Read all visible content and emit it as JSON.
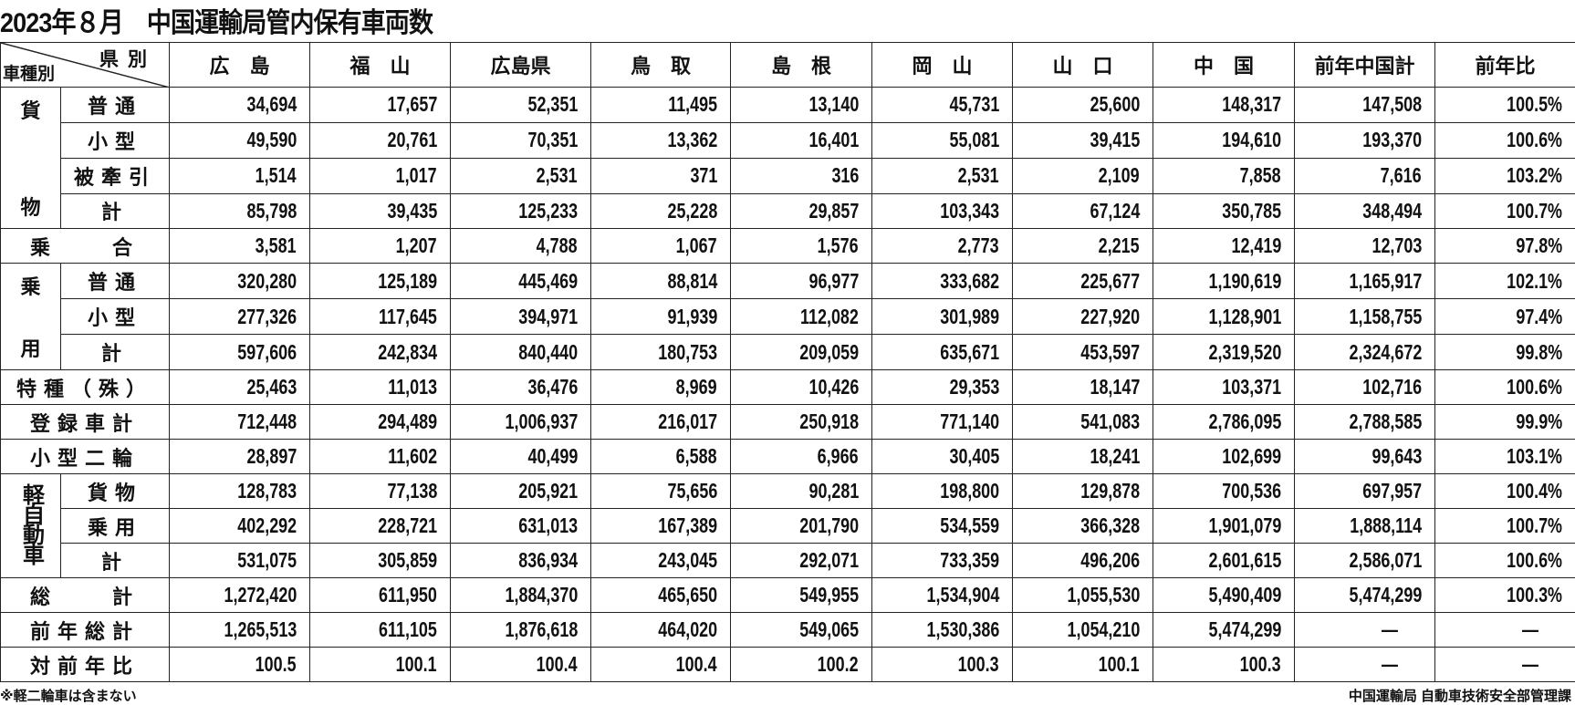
{
  "title": "2023年８月　中国運輸局管内保有車両数",
  "corner": {
    "top": "県別",
    "bottom": "車種別"
  },
  "columns": [
    "広　島",
    "福　山",
    "広島県",
    "鳥　取",
    "島　根",
    "岡　山",
    "山　口",
    "中　国",
    "前年中国計",
    "前年比"
  ],
  "groups": {
    "kamotsu": {
      "top": "貨",
      "bottom": "物"
    },
    "joyo": {
      "top": "乗",
      "bottom": "用"
    },
    "kei": {
      "vertical": "軽自動車"
    }
  },
  "rows": [
    {
      "group": "kamotsu",
      "label": "普通",
      "values": [
        "34,694",
        "17,657",
        "52,351",
        "11,495",
        "13,140",
        "45,731",
        "25,600",
        "148,317",
        "147,508",
        "100.5%"
      ]
    },
    {
      "group": "kamotsu",
      "label": "小型",
      "values": [
        "49,590",
        "20,761",
        "70,351",
        "13,362",
        "16,401",
        "55,081",
        "39,415",
        "194,610",
        "193,370",
        "100.6%"
      ]
    },
    {
      "group": "kamotsu",
      "label": "被牽引",
      "values": [
        "1,514",
        "1,017",
        "2,531",
        "371",
        "316",
        "2,531",
        "2,109",
        "7,858",
        "7,616",
        "103.2%"
      ]
    },
    {
      "group": "kamotsu",
      "label": "計",
      "values": [
        "85,798",
        "39,435",
        "125,233",
        "25,228",
        "29,857",
        "103,343",
        "67,124",
        "350,785",
        "348,494",
        "100.7%"
      ]
    },
    {
      "label": "乗　　合",
      "values": [
        "3,581",
        "1,207",
        "4,788",
        "1,067",
        "1,576",
        "2,773",
        "2,215",
        "12,419",
        "12,703",
        "97.8%"
      ]
    },
    {
      "group": "joyo",
      "label": "普通",
      "values": [
        "320,280",
        "125,189",
        "445,469",
        "88,814",
        "96,977",
        "333,682",
        "225,677",
        "1,190,619",
        "1,165,917",
        "102.1%"
      ]
    },
    {
      "group": "joyo",
      "label": "小型",
      "values": [
        "277,326",
        "117,645",
        "394,971",
        "91,939",
        "112,082",
        "301,989",
        "227,920",
        "1,128,901",
        "1,158,755",
        "97.4%"
      ]
    },
    {
      "group": "joyo",
      "label": "計",
      "values": [
        "597,606",
        "242,834",
        "840,440",
        "180,753",
        "209,059",
        "635,671",
        "453,597",
        "2,319,520",
        "2,324,672",
        "99.8%"
      ]
    },
    {
      "label": "特種（殊）",
      "values": [
        "25,463",
        "11,013",
        "36,476",
        "8,969",
        "10,426",
        "29,353",
        "18,147",
        "103,371",
        "102,716",
        "100.6%"
      ]
    },
    {
      "label": "登録車計",
      "values": [
        "712,448",
        "294,489",
        "1,006,937",
        "216,017",
        "250,918",
        "771,140",
        "541,083",
        "2,786,095",
        "2,788,585",
        "99.9%"
      ]
    },
    {
      "label": "小型二輪",
      "values": [
        "28,897",
        "11,602",
        "40,499",
        "6,588",
        "6,966",
        "30,405",
        "18,241",
        "102,699",
        "99,643",
        "103.1%"
      ]
    },
    {
      "group": "kei",
      "label": "貨物",
      "values": [
        "128,783",
        "77,138",
        "205,921",
        "75,656",
        "90,281",
        "198,800",
        "129,878",
        "700,536",
        "697,957",
        "100.4%"
      ]
    },
    {
      "group": "kei",
      "label": "乗用",
      "values": [
        "402,292",
        "228,721",
        "631,013",
        "167,389",
        "201,790",
        "534,559",
        "366,328",
        "1,901,079",
        "1,888,114",
        "100.7%"
      ]
    },
    {
      "group": "kei",
      "label": "計",
      "values": [
        "531,075",
        "305,859",
        "836,934",
        "243,045",
        "292,071",
        "733,359",
        "496,206",
        "2,601,615",
        "2,586,071",
        "100.6%"
      ]
    },
    {
      "label": "総　　計",
      "values": [
        "1,272,420",
        "611,950",
        "1,884,370",
        "465,650",
        "549,955",
        "1,534,904",
        "1,055,530",
        "5,490,409",
        "5,474,299",
        "100.3%"
      ]
    },
    {
      "label": "前年総計",
      "values": [
        "1,265,513",
        "611,105",
        "1,876,618",
        "464,020",
        "549,065",
        "1,530,386",
        "1,054,210",
        "5,474,299",
        "—",
        "—"
      ]
    },
    {
      "label": "対前年比",
      "values": [
        "100.5",
        "100.1",
        "100.4",
        "100.4",
        "100.2",
        "100.3",
        "100.1",
        "100.3",
        "—",
        "—"
      ]
    }
  ],
  "footer": {
    "note": "※軽二輪車は含まない",
    "source": "中国運輸局 自動車技術安全部管理課"
  }
}
